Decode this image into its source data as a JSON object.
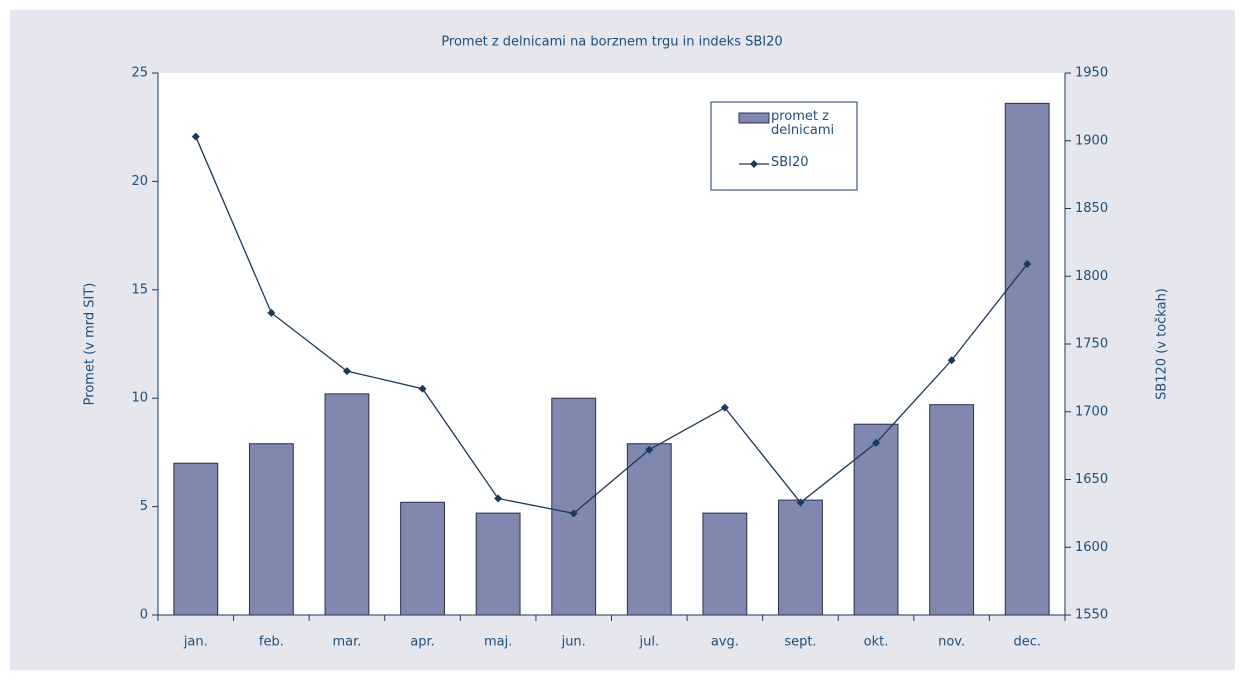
{
  "chart_data": {
    "type": "bar_line",
    "title": "Promet z delnicami na borznem trgu in indeks SBI20",
    "y_label": "Promet (v mrd SIT)",
    "y2_label": "SB120 (v točkah)",
    "categories": [
      "jan.",
      "feb.",
      "mar.",
      "apr.",
      "maj.",
      "jun.",
      "jul.",
      "avg.",
      "sept.",
      "okt.",
      "nov.",
      "dec."
    ],
    "series": [
      {
        "name": "promet z delnicami",
        "type": "bar",
        "color": "#8088b0",
        "values": [
          7.0,
          7.9,
          10.2,
          5.2,
          4.7,
          10.0,
          7.9,
          4.7,
          5.3,
          8.8,
          9.7,
          23.6
        ]
      },
      {
        "name": "SBI20",
        "type": "line",
        "axis": "y2",
        "color": "#1a3a5c",
        "values": [
          1903,
          1773,
          1730,
          1717,
          1636,
          1625,
          1672,
          1703,
          1633,
          1677,
          1738,
          1809
        ]
      }
    ],
    "ylim": [
      0,
      25
    ],
    "yticks": [
      0,
      5,
      10,
      15,
      20,
      25
    ],
    "y2lim": [
      1550,
      1950
    ],
    "y2ticks": [
      1550,
      1600,
      1650,
      1700,
      1750,
      1800,
      1850,
      1900,
      1950
    ],
    "grid": false,
    "legend": "upper right"
  }
}
